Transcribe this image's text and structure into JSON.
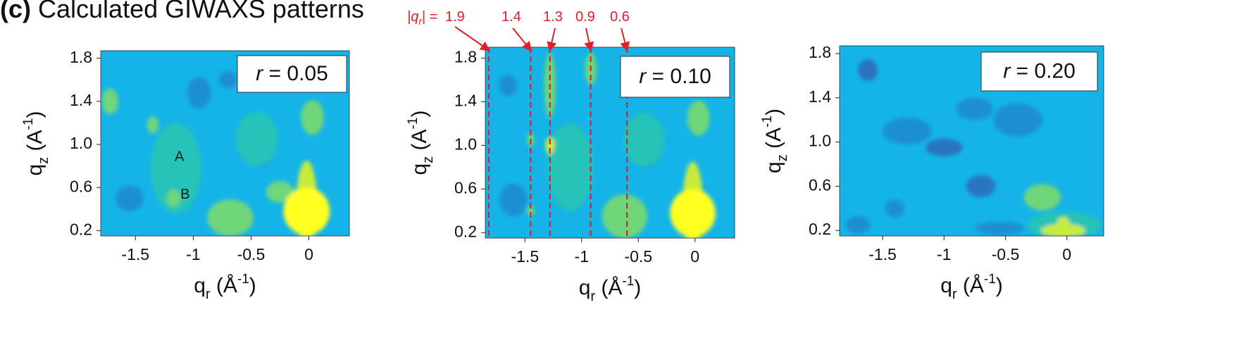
{
  "figure": {
    "panel_letter": "(c)",
    "title": "Calculated GIWAXS patterns"
  },
  "annotation": {
    "prefix_labels": [
      "|q",
      "r",
      "| = "
    ],
    "values": [
      "1.9",
      "1.4",
      "1.3",
      "0.9",
      "0.6"
    ],
    "color": "#e0202a"
  },
  "colors": {
    "background_level": "#14b4e8",
    "low_level": "#1d8fd2",
    "lower_level": "#2a74bf",
    "mid_level": "#27c3b8",
    "green_level": "#6fd67a",
    "high_level": "#c9ec3a",
    "peak_level": "#ffff22"
  },
  "chart_data": [
    {
      "type": "heatmap",
      "id": "r005",
      "annotation_text": [
        "r",
        " = 0.05"
      ],
      "xlabel_parts": [
        "q",
        "r",
        " (Å",
        "-1",
        ")"
      ],
      "ylabel_parts": [
        "q",
        "z",
        " (A",
        "-1",
        ")"
      ],
      "xlim": [
        -1.8,
        0.35
      ],
      "ylim": [
        0.15,
        1.87
      ],
      "xticks": [
        -1.5,
        -1,
        -0.5,
        0
      ],
      "xtick_labels": [
        "-1.5",
        "-1",
        "-0.5",
        "0"
      ],
      "yticks": [
        0.2,
        0.6,
        1.0,
        1.4,
        1.8
      ],
      "ytick_labels": [
        "0.2",
        "0.6",
        "1.0",
        "1.4",
        "1.8"
      ],
      "point_labels": [
        {
          "text": "A",
          "x": -1.12,
          "y": 0.88
        },
        {
          "text": "B",
          "x": -1.07,
          "y": 0.53
        }
      ],
      "features": [
        {
          "x": -0.02,
          "y": 0.38,
          "rx": 0.2,
          "ry": 0.22,
          "level": "peak"
        },
        {
          "x": -0.02,
          "y": 0.45,
          "rx": 0.09,
          "ry": 0.4,
          "level": "high"
        },
        {
          "x": 0.03,
          "y": 1.25,
          "rx": 0.1,
          "ry": 0.16,
          "level": "green"
        },
        {
          "x": -0.68,
          "y": 0.32,
          "rx": 0.2,
          "ry": 0.17,
          "level": "green"
        },
        {
          "x": -0.25,
          "y": 0.56,
          "rx": 0.12,
          "ry": 0.1,
          "level": "green"
        },
        {
          "x": -1.17,
          "y": 0.5,
          "rx": 0.06,
          "ry": 0.08,
          "level": "green"
        },
        {
          "x": -1.72,
          "y": 1.4,
          "rx": 0.07,
          "ry": 0.12,
          "level": "green"
        },
        {
          "x": -1.35,
          "y": 1.18,
          "rx": 0.05,
          "ry": 0.08,
          "level": "green"
        },
        {
          "x": -1.15,
          "y": 0.78,
          "rx": 0.22,
          "ry": 0.42,
          "level": "mid"
        },
        {
          "x": -0.45,
          "y": 1.05,
          "rx": 0.18,
          "ry": 0.25,
          "level": "mid"
        },
        {
          "x": -0.95,
          "y": 1.48,
          "rx": 0.1,
          "ry": 0.15,
          "level": "low"
        },
        {
          "x": -0.42,
          "y": 0.95,
          "rx": 0.1,
          "ry": 0.16,
          "level": "low"
        },
        {
          "x": -1.55,
          "y": 0.5,
          "rx": 0.12,
          "ry": 0.12,
          "level": "low"
        },
        {
          "x": -0.7,
          "y": 1.6,
          "rx": 0.08,
          "ry": 0.08,
          "level": "low"
        }
      ]
    },
    {
      "type": "heatmap",
      "id": "r010",
      "annotation_text": [
        "r",
        " = 0.10"
      ],
      "xlabel_parts": [
        "q",
        "r",
        " (Å",
        "-1",
        ")"
      ],
      "ylabel_parts": [
        "q",
        "z",
        " (A",
        "-1",
        ")"
      ],
      "xlim": [
        -1.85,
        0.35
      ],
      "ylim": [
        0.15,
        1.9
      ],
      "xticks": [
        -1.5,
        -1,
        -0.5,
        0
      ],
      "xtick_labels": [
        "-1.5",
        "-1",
        "-0.5",
        "0"
      ],
      "yticks": [
        0.2,
        0.6,
        1.0,
        1.4,
        1.8
      ],
      "ytick_labels": [
        "0.2",
        "0.6",
        "1.0",
        "1.4",
        "1.8"
      ],
      "dashed_lines_x": [
        -1.82,
        -1.45,
        -1.28,
        -0.92,
        -0.6
      ],
      "point_labels": [],
      "features": [
        {
          "x": -0.02,
          "y": 0.38,
          "rx": 0.2,
          "ry": 0.22,
          "level": "peak"
        },
        {
          "x": -0.02,
          "y": 0.45,
          "rx": 0.09,
          "ry": 0.4,
          "level": "high"
        },
        {
          "x": 0.03,
          "y": 1.25,
          "rx": 0.1,
          "ry": 0.16,
          "level": "green"
        },
        {
          "x": -0.62,
          "y": 0.35,
          "rx": 0.2,
          "ry": 0.2,
          "level": "green"
        },
        {
          "x": -1.28,
          "y": 1.0,
          "rx": 0.04,
          "ry": 0.08,
          "level": "high"
        },
        {
          "x": -1.45,
          "y": 1.05,
          "rx": 0.03,
          "ry": 0.06,
          "level": "green"
        },
        {
          "x": -1.28,
          "y": 1.55,
          "rx": 0.05,
          "ry": 0.3,
          "level": "green"
        },
        {
          "x": -0.92,
          "y": 1.7,
          "rx": 0.05,
          "ry": 0.15,
          "level": "green"
        },
        {
          "x": -1.45,
          "y": 0.4,
          "rx": 0.03,
          "ry": 0.05,
          "level": "green"
        },
        {
          "x": -1.1,
          "y": 0.8,
          "rx": 0.2,
          "ry": 0.4,
          "level": "mid"
        },
        {
          "x": -0.45,
          "y": 1.05,
          "rx": 0.18,
          "ry": 0.25,
          "level": "mid"
        },
        {
          "x": -1.6,
          "y": 0.5,
          "rx": 0.12,
          "ry": 0.15,
          "level": "low"
        },
        {
          "x": -0.42,
          "y": 0.95,
          "rx": 0.1,
          "ry": 0.16,
          "level": "low"
        },
        {
          "x": -1.65,
          "y": 1.55,
          "rx": 0.08,
          "ry": 0.1,
          "level": "low"
        }
      ]
    },
    {
      "type": "heatmap",
      "id": "r020",
      "annotation_text": [
        "r",
        " = 0.20"
      ],
      "xlabel_parts": [
        "q",
        "r",
        " (Å",
        "-1",
        ")"
      ],
      "ylabel_parts": [
        "q",
        "z",
        " (A",
        "-1",
        ")"
      ],
      "xlim": [
        -1.85,
        0.3
      ],
      "ylim": [
        0.15,
        1.87
      ],
      "xticks": [
        -1.5,
        -1,
        -0.5,
        0
      ],
      "xtick_labels": [
        "-1.5",
        "-1",
        "-0.5",
        "0"
      ],
      "yticks": [
        0.2,
        0.6,
        1.0,
        1.4,
        1.8
      ],
      "ytick_labels": [
        "0.2",
        "0.6",
        "1.0",
        "1.4",
        "1.8"
      ],
      "point_labels": [],
      "features": [
        {
          "x": -0.03,
          "y": 0.2,
          "rx": 0.18,
          "ry": 0.06,
          "level": "high"
        },
        {
          "x": -0.03,
          "y": 0.27,
          "rx": 0.05,
          "ry": 0.05,
          "level": "high"
        },
        {
          "x": -0.2,
          "y": 0.5,
          "rx": 0.15,
          "ry": 0.12,
          "level": "green"
        },
        {
          "x": -0.02,
          "y": 0.25,
          "rx": 0.3,
          "ry": 0.12,
          "level": "mid"
        },
        {
          "x": -1.62,
          "y": 1.65,
          "rx": 0.08,
          "ry": 0.1,
          "level": "lower"
        },
        {
          "x": -1.0,
          "y": 0.95,
          "rx": 0.15,
          "ry": 0.08,
          "level": "lower"
        },
        {
          "x": -0.7,
          "y": 0.6,
          "rx": 0.12,
          "ry": 0.1,
          "level": "lower"
        },
        {
          "x": -0.75,
          "y": 1.3,
          "rx": 0.15,
          "ry": 0.1,
          "level": "low"
        },
        {
          "x": -1.3,
          "y": 1.1,
          "rx": 0.2,
          "ry": 0.12,
          "level": "low"
        },
        {
          "x": -0.4,
          "y": 1.2,
          "rx": 0.2,
          "ry": 0.15,
          "level": "low"
        },
        {
          "x": -1.7,
          "y": 0.25,
          "rx": 0.1,
          "ry": 0.08,
          "level": "low"
        },
        {
          "x": -1.4,
          "y": 0.4,
          "rx": 0.08,
          "ry": 0.08,
          "level": "low"
        },
        {
          "x": -0.55,
          "y": 0.22,
          "rx": 0.2,
          "ry": 0.06,
          "level": "low"
        },
        {
          "x": -0.3,
          "y": 1.55,
          "rx": 0.08,
          "ry": 0.08,
          "level": "low"
        }
      ]
    }
  ]
}
